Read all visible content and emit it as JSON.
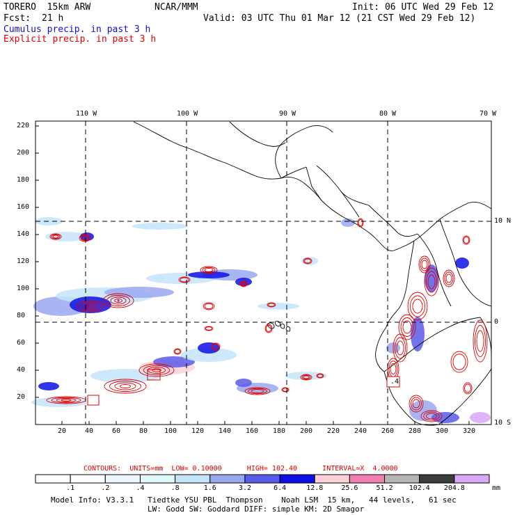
{
  "header": {
    "model": "TORERO  15km ARW",
    "org": "NCAR/MMM",
    "init": "Init: 06 UTC Wed 29 Feb 12",
    "fcst_label": "Fcst:",
    "fcst_value": "21 h",
    "valid": "Valid: 03 UTC Thu 01 Mar 12 (21 CST Wed 29 Feb 12)",
    "cumulus": "Cumulus precip. in past 3 h",
    "explicit": "Explicit precip. in past 3 h"
  },
  "map": {
    "lon_labels": [
      "110 W",
      "100 W",
      "90 W",
      "80 W",
      "70 W"
    ],
    "lat_labels": [
      "10 N",
      "0",
      "10 S"
    ],
    "y_ticks": [
      "220",
      "200",
      "180",
      "160",
      "140",
      "120",
      "100",
      "80",
      "60",
      "40",
      "20"
    ],
    "x_ticks": [
      "20",
      "40",
      "60",
      "80",
      "100",
      "120",
      "140",
      "160",
      "180",
      "200",
      "220",
      "240",
      "260",
      "280",
      "300",
      "320"
    ],
    "contour_labels": [
      ".4"
    ],
    "colors": {
      "explicit_contour": "#e00000",
      "coast": "#000000"
    }
  },
  "contours_info": "CONTOURS:  UNITS=mm  LOW= 0.10000      HIGH= 102.40      INTERVAL=X  4.0000",
  "colorbar": {
    "labels": [
      ".1",
      ".2",
      ".4",
      ".8",
      "1.6",
      "3.2",
      "6.4",
      "12.8",
      "25.6",
      "51.2",
      "102.4",
      "204.8"
    ],
    "unit": "mm",
    "colors": [
      "#ffffff",
      "#ffffff",
      "#ecf6ff",
      "#dff8f8",
      "#c4e4fa",
      "#9aa8f0",
      "#5a5ae8",
      "#0e10e6",
      "#fcd2d8",
      "#f080b0",
      "#b4b4b4",
      "#3c3c3c",
      "#d8a8f8"
    ]
  },
  "footer": {
    "line1": "Model Info: V3.3.1   Tiedtke YSU PBL  Thompson    Noah LSM  15 km,   44 levels,   61 sec",
    "line2": "LW: Godd SW: Goddard DIFF: simple KM: 2D Smagor"
  }
}
